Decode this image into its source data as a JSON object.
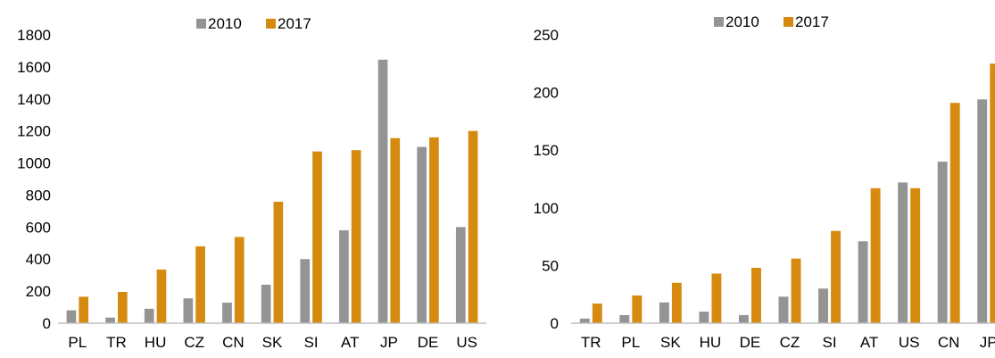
{
  "colors": {
    "series_2010": "#949494",
    "series_2017": "#D78A10",
    "axis": "#BFBFBF"
  },
  "chart_data": [
    {
      "type": "bar",
      "title": "",
      "xlabel": "",
      "ylabel": "",
      "categories": [
        "PL",
        "TR",
        "HU",
        "CZ",
        "CN",
        "SK",
        "SI",
        "AT",
        "JP",
        "DE",
        "US"
      ],
      "series": [
        {
          "name": "2010",
          "values": [
            80,
            35,
            90,
            155,
            128,
            240,
            400,
            580,
            1645,
            1100,
            600
          ]
        },
        {
          "name": "2017",
          "values": [
            165,
            195,
            335,
            480,
            538,
            758,
            1072,
            1080,
            1155,
            1160,
            1200
          ]
        }
      ],
      "ylim": [
        0,
        1800
      ],
      "yticks": [
        "0",
        "200",
        "400",
        "600",
        "800",
        "1000",
        "1200",
        "1400",
        "1600",
        "1800"
      ],
      "legend_position": "top",
      "grid": false
    },
    {
      "type": "bar",
      "title": "",
      "xlabel": "",
      "ylabel": "",
      "categories": [
        "TR",
        "PL",
        "SK",
        "HU",
        "DE",
        "CZ",
        "SI",
        "AT",
        "US",
        "CN",
        "JP"
      ],
      "series": [
        {
          "name": "2010",
          "values": [
            4,
            7,
            18,
            10,
            7,
            23,
            30,
            71,
            122,
            140,
            194
          ]
        },
        {
          "name": "2017",
          "values": [
            17,
            24,
            35,
            43,
            48,
            56,
            80,
            117,
            117,
            191,
            225
          ]
        }
      ],
      "ylim": [
        0,
        250
      ],
      "yticks": [
        "0",
        "50",
        "100",
        "150",
        "200",
        "250"
      ],
      "legend_position": "top",
      "grid": false
    }
  ]
}
